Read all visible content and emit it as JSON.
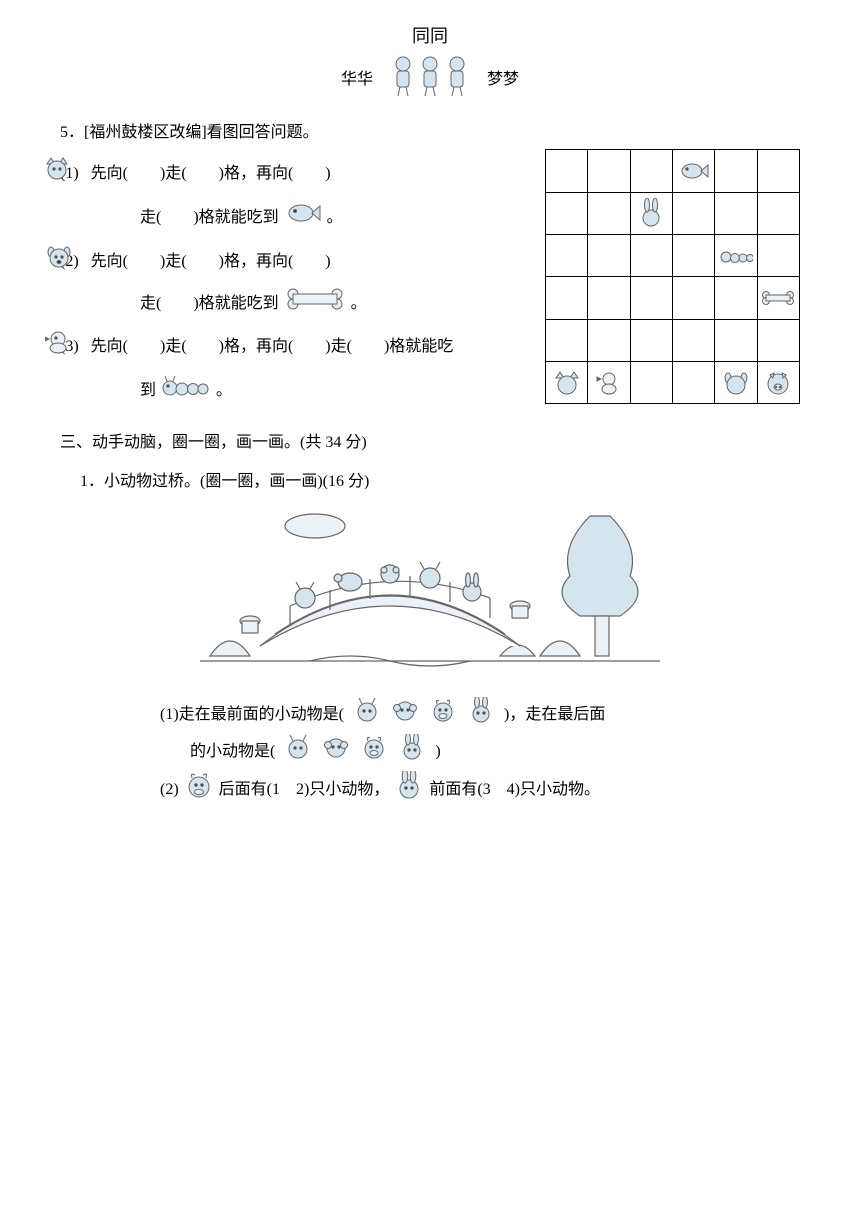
{
  "colors": {
    "ink": "#000000",
    "iconLine": "#4a4a4a",
    "iconFill": "#d5e5f0",
    "iconFillLight": "#eaf2f8",
    "paper": "#ffffff"
  },
  "header": {
    "topName": "同同",
    "leftName": "华华",
    "rightName": "梦梦"
  },
  "q5": {
    "title": "5．[福州鼓楼区改编]看图回答问题。",
    "sub1_a": "(1)",
    "sub1_b": "先向(　　)走(　　)格，再向(　　)",
    "sub1_c": "走(　　)格就能吃到",
    "sub1_d": "。",
    "sub2_a": "(2)",
    "sub2_b": "先向(　　)走(　　)格，再向(　　)",
    "sub2_c": "走(　　)格就能吃到",
    "sub2_d": "。",
    "sub3_a": "(3)",
    "sub3_b": "先向(　　)走(　　)格，再向(　　)走(　　)格就能吃",
    "sub3_c": "到",
    "sub3_d": "。",
    "grid": {
      "rows": 6,
      "cols": 6,
      "placements": [
        {
          "r": 0,
          "c": 3,
          "icon": "fish"
        },
        {
          "r": 1,
          "c": 2,
          "icon": "rabbit"
        },
        {
          "r": 2,
          "c": 4,
          "icon": "caterpillar"
        },
        {
          "r": 3,
          "c": 5,
          "icon": "bone"
        },
        {
          "r": 5,
          "c": 0,
          "icon": "cat"
        },
        {
          "r": 5,
          "c": 1,
          "icon": "chick"
        },
        {
          "r": 5,
          "c": 4,
          "icon": "dog"
        },
        {
          "r": 5,
          "c": 5,
          "icon": "pig"
        }
      ]
    }
  },
  "section3": {
    "title": "三、动手动脑，圈一圈，画一画。(共 34 分)",
    "q1_title": "1．小动物过桥。(圈一圈，画一画)(16 分)",
    "q1_sub1_a": "(1)走在最前面的小动物是(",
    "q1_sub1_b": ")，走在最后面",
    "q1_sub1_c": "的小动物是(",
    "q1_sub1_d": ")",
    "q1_sub2_a": "(2)",
    "q1_sub2_b": "后面有(1　2)只小动物，",
    "q1_sub2_c": "前面有(3　4)只小动物。",
    "optionIcons": [
      "goat",
      "monkey",
      "cow",
      "rabbit"
    ]
  }
}
